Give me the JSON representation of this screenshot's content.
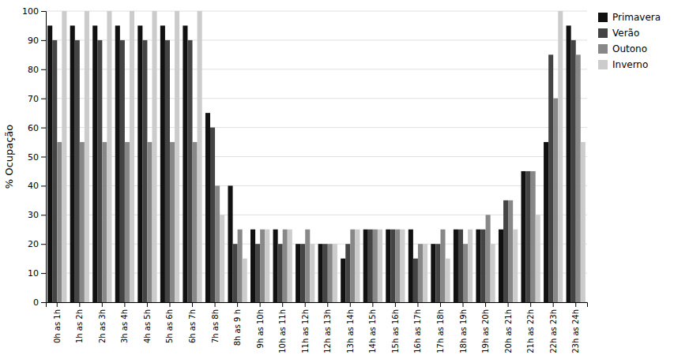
{
  "chart_data": {
    "type": "bar",
    "ylabel": "% Ocupação",
    "categories": [
      "0h as 1h",
      "1h as 2h",
      "2h as 3h",
      "3h as 4h",
      "4h as 5h",
      "5h as 6h",
      "6h as 7h",
      "7h as 8h",
      "8h as 9 h",
      "9h as 10h",
      "10h as 11h",
      "11h as 12h",
      "12h as 13h",
      "13h as 14h",
      "14h as 15h",
      "15h as 16h",
      "16h as 17h",
      "17h as 18h",
      "18h as 19h",
      "19h as 20h",
      "20h as 21h",
      "21h as 22h",
      "22h as 23h",
      "23h as 24h"
    ],
    "series": [
      {
        "name": "Primavera",
        "color": "#111111",
        "values": [
          95,
          95,
          95,
          95,
          95,
          95,
          95,
          65,
          40,
          25,
          25,
          20,
          20,
          15,
          25,
          25,
          25,
          20,
          25,
          25,
          25,
          45,
          55,
          95
        ]
      },
      {
        "name": "Verão",
        "color": "#444444",
        "values": [
          90,
          90,
          90,
          90,
          90,
          90,
          90,
          60,
          20,
          20,
          20,
          20,
          20,
          20,
          25,
          25,
          15,
          20,
          25,
          25,
          35,
          45,
          85,
          90
        ]
      },
      {
        "name": "Outono",
        "color": "#888888",
        "values": [
          55,
          55,
          55,
          55,
          55,
          55,
          55,
          40,
          25,
          25,
          25,
          25,
          20,
          25,
          25,
          25,
          20,
          25,
          20,
          30,
          35,
          45,
          70,
          85
        ]
      },
      {
        "name": "Inverno",
        "color": "#cccccc",
        "values": [
          100,
          100,
          100,
          100,
          100,
          100,
          100,
          30,
          15,
          25,
          25,
          20,
          20,
          25,
          25,
          25,
          20,
          15,
          25,
          20,
          25,
          30,
          100,
          55
        ]
      }
    ],
    "ylim": [
      0,
      100
    ],
    "yticks": [
      0,
      10,
      20,
      30,
      40,
      50,
      60,
      70,
      80,
      90,
      100
    ],
    "grid": true,
    "legend": "upper right"
  }
}
